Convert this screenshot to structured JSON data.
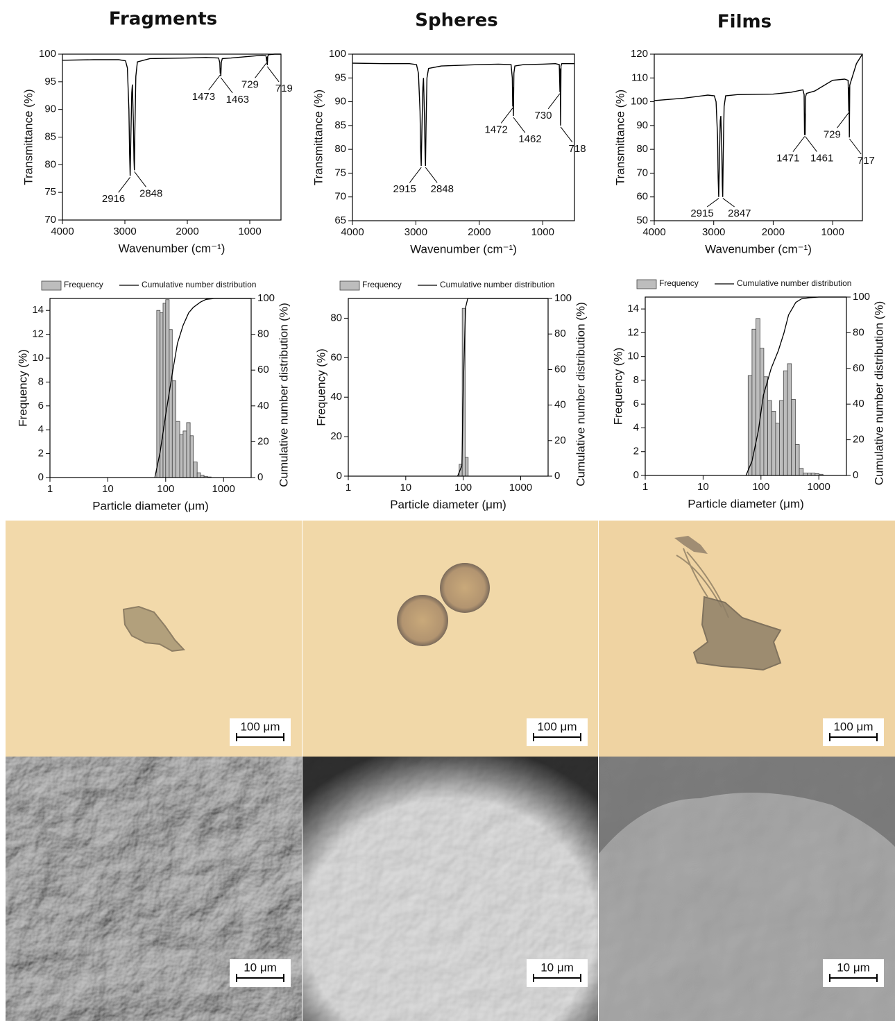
{
  "columns": [
    {
      "title": "Fragments",
      "optical_scale": "100 μm",
      "sem_scale": "10 μm"
    },
    {
      "title": "Spheres",
      "optical_scale": "100 μm",
      "sem_scale": "10 μm"
    },
    {
      "title": "Films",
      "optical_scale": "100 μm",
      "sem_scale": "10 μm"
    }
  ],
  "chart_data": [
    {
      "type": "line",
      "xlabel": "Wavenumber (cm⁻¹)",
      "ylabel": "Transmittance (%)",
      "color": "#000000",
      "x": [
        4000,
        3500,
        3100,
        2990,
        2960,
        2935,
        2925,
        2916,
        2905,
        2890,
        2880,
        2865,
        2855,
        2848,
        2840,
        2825,
        2800,
        2600,
        2000,
        1700,
        1500,
        1480,
        1473,
        1468,
        1463,
        1455,
        1440,
        1300,
        1000,
        800,
        740,
        729,
        724,
        719,
        712,
        700,
        600,
        500
      ],
      "values": [
        98.9,
        99.0,
        99.0,
        98.8,
        97.5,
        90,
        82,
        78,
        85,
        93,
        94.5,
        88,
        81,
        79,
        86,
        96,
        98.6,
        99.2,
        99.3,
        99.4,
        99.3,
        98.5,
        96.5,
        97.5,
        96,
        98.5,
        99.2,
        99.3,
        99.6,
        99.8,
        99.7,
        98.7,
        99.5,
        98,
        99.6,
        99.9,
        100,
        100
      ],
      "xlim": [
        4000,
        500
      ],
      "xticks": [
        4000,
        3000,
        2000,
        1000
      ],
      "ylim": [
        70,
        100
      ],
      "yticks": [
        70,
        75,
        80,
        85,
        90,
        95,
        100
      ],
      "annotations": [
        {
          "x": 2916,
          "y": 78
        },
        {
          "x": 2848,
          "y": 79
        },
        {
          "x": 1473,
          "y": 96.5
        },
        {
          "x": 1463,
          "y": 96
        },
        {
          "x": 729,
          "y": 98.7
        },
        {
          "x": 719,
          "y": 98
        }
      ]
    },
    {
      "type": "line",
      "xlabel": "Wavenumber (cm⁻¹)",
      "ylabel": "Transmittance (%)",
      "color": "#000000",
      "x": [
        4000,
        3500,
        3100,
        2990,
        2960,
        2935,
        2925,
        2916,
        2905,
        2890,
        2880,
        2865,
        2855,
        2848,
        2840,
        2825,
        2800,
        2600,
        2000,
        1700,
        1500,
        1480,
        1473,
        1468,
        1463,
        1455,
        1440,
        1300,
        1000,
        800,
        740,
        729,
        724,
        719,
        712,
        700,
        600,
        500
      ],
      "values": [
        98.1,
        98.0,
        98.0,
        97.8,
        96,
        88,
        80,
        76.5,
        84,
        93,
        95,
        87,
        79,
        76.5,
        85,
        95,
        97,
        97.5,
        97.8,
        97.9,
        97.8,
        95,
        89,
        93,
        87,
        96,
        97.5,
        97.8,
        97.9,
        98,
        97.8,
        92,
        97,
        85,
        97.5,
        98,
        98,
        98
      ],
      "xlim": [
        4000,
        500
      ],
      "xticks": [
        4000,
        3000,
        2000,
        1000
      ],
      "ylim": [
        65,
        100
      ],
      "yticks": [
        65,
        70,
        75,
        80,
        85,
        90,
        95,
        100
      ],
      "annotations": [
        {
          "x": 2915,
          "y": 76.5
        },
        {
          "x": 2848,
          "y": 76.5
        },
        {
          "x": 1472,
          "y": 89
        },
        {
          "x": 1462,
          "y": 87
        },
        {
          "x": 730,
          "y": 92
        },
        {
          "x": 718,
          "y": 85
        }
      ]
    },
    {
      "type": "line",
      "xlabel": "Wavenumber (cm⁻¹)",
      "ylabel": "Transmittance (%)",
      "color": "#000000",
      "x": [
        4000,
        3500,
        3100,
        2990,
        2960,
        2935,
        2925,
        2916,
        2905,
        2890,
        2880,
        2865,
        2855,
        2848,
        2840,
        2825,
        2800,
        2600,
        2000,
        1700,
        1500,
        1480,
        1473,
        1468,
        1463,
        1455,
        1440,
        1300,
        1000,
        800,
        740,
        729,
        724,
        719,
        712,
        700,
        600,
        500
      ],
      "values": [
        100.5,
        101.5,
        102.8,
        102.5,
        100,
        85,
        68,
        60,
        75,
        92,
        94,
        80,
        65,
        60,
        78,
        98,
        102.5,
        103,
        103.2,
        104,
        105,
        103,
        86,
        95,
        86,
        102,
        103.5,
        104.5,
        109,
        109.5,
        109,
        96,
        106,
        85,
        107,
        108,
        116,
        120
      ],
      "xlim": [
        4000,
        500
      ],
      "xticks": [
        4000,
        3000,
        2000,
        1000
      ],
      "ylim": [
        50,
        120
      ],
      "yticks": [
        50,
        60,
        70,
        80,
        90,
        100,
        110,
        120
      ],
      "annotations": [
        {
          "x": 2915,
          "y": 60
        },
        {
          "x": 2847,
          "y": 60
        },
        {
          "x": 1471,
          "y": 86
        },
        {
          "x": 1461,
          "y": 86
        },
        {
          "x": 729,
          "y": 96
        },
        {
          "x": 717,
          "y": 85
        }
      ]
    },
    {
      "type": "histogram",
      "xlabel": "Particle diameter (μm)",
      "ylabel": "Frequency (%)",
      "y2label": "Cumulative number distribution (%)",
      "log_x": true,
      "bins": [
        70,
        80,
        90,
        100,
        115,
        130,
        150,
        175,
        200,
        230,
        265,
        300,
        350,
        400,
        460,
        530,
        610
      ],
      "series": [
        {
          "name": "Frequency",
          "color": "#bdbdbd",
          "values": [
            14.0,
            13.8,
            14.6,
            14.9,
            12.4,
            8.1,
            4.7,
            3.6,
            3.9,
            4.6,
            3.5,
            1.3,
            0.4,
            0.2,
            0.1,
            0.05
          ]
        },
        {
          "name": "Cumulative number distribution",
          "color": "#000000",
          "axis": "y2",
          "x": [
            65,
            80,
            100,
            130,
            160,
            200,
            250,
            300,
            400,
            500,
            700,
            1000,
            3000
          ],
          "values": [
            0,
            14,
            35,
            58,
            75,
            85,
            92,
            95,
            98,
            99.5,
            100,
            100,
            100
          ]
        }
      ],
      "xlim": [
        1,
        3000
      ],
      "xticks": [
        1,
        10,
        100,
        1000
      ],
      "ylim": [
        0,
        15
      ],
      "yticks": [
        0,
        2,
        4,
        6,
        8,
        10,
        12,
        14
      ],
      "y2lim": [
        0,
        100
      ],
      "y2ticks": [
        0,
        20,
        40,
        60,
        80,
        100
      ],
      "legend": "top"
    },
    {
      "type": "histogram",
      "xlabel": "Particle diameter (μm)",
      "ylabel": "Frequency (%)",
      "y2label": "Cumulative number distribution (%)",
      "log_x": true,
      "bins": [
        85,
        96,
        108,
        122
      ],
      "series": [
        {
          "name": "Frequency",
          "color": "#bdbdbd",
          "values": [
            6,
            85,
            9.5
          ]
        },
        {
          "name": "Cumulative number distribution",
          "color": "#000000",
          "axis": "y2",
          "x": [
            80,
            95,
            100,
            110,
            120,
            3000
          ],
          "values": [
            0,
            6,
            50,
            95,
            100,
            100
          ]
        }
      ],
      "xlim": [
        1,
        3000
      ],
      "xticks": [
        1,
        10,
        100,
        1000
      ],
      "ylim": [
        0,
        90
      ],
      "yticks": [
        0,
        20,
        40,
        60,
        80
      ],
      "y2lim": [
        0,
        100
      ],
      "y2ticks": [
        0,
        20,
        40,
        60,
        80,
        100
      ],
      "legend": "top"
    },
    {
      "type": "histogram",
      "xlabel": "Particle diameter (μm)",
      "ylabel": "Frequency (%)",
      "y2label": "Cumulative number distribution (%)",
      "log_x": true,
      "bins": [
        60,
        70,
        82,
        96,
        112,
        131,
        153,
        179,
        209,
        245,
        287,
        336,
        393,
        460,
        538,
        630,
        737,
        862,
        1009,
        1180
      ],
      "series": [
        {
          "name": "Frequency",
          "color": "#bdbdbd",
          "values": [
            8.4,
            12.3,
            13.2,
            10.7,
            8.3,
            6.3,
            5.4,
            4.4,
            6.3,
            8.8,
            9.4,
            6.4,
            2.6,
            0.6,
            0.2,
            0.2,
            0.2,
            0.15,
            0.1
          ]
        },
        {
          "name": "Cumulative number distribution",
          "color": "#000000",
          "axis": "y2",
          "x": [
            55,
            70,
            90,
            110,
            150,
            200,
            250,
            300,
            400,
            500,
            700,
            1000,
            3000
          ],
          "values": [
            0,
            8,
            25,
            45,
            60,
            70,
            80,
            90,
            97,
            99,
            99.7,
            100,
            100
          ]
        }
      ],
      "xlim": [
        1,
        3000
      ],
      "xticks": [
        1,
        10,
        100,
        1000
      ],
      "ylim": [
        0,
        15
      ],
      "yticks": [
        0,
        2,
        4,
        6,
        8,
        10,
        12,
        14
      ],
      "y2lim": [
        0,
        100
      ],
      "y2ticks": [
        0,
        20,
        40,
        60,
        80,
        100
      ],
      "legend": "top"
    }
  ]
}
